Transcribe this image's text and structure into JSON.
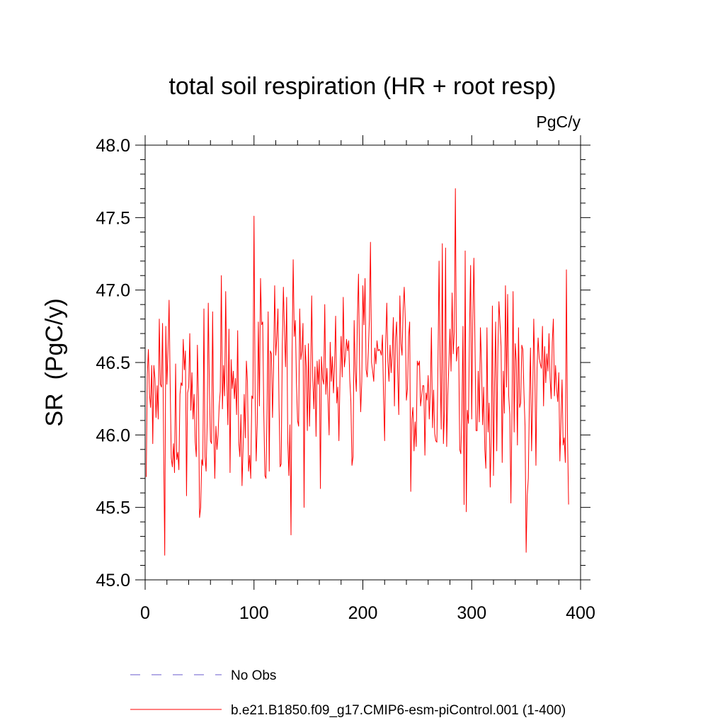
{
  "chart_data": {
    "type": "line",
    "title": "total soil respiration (HR + root resp)",
    "units": "PgC/y",
    "ylabel": "SR  (PgC/y)",
    "xlabel": "",
    "xlim": [
      0,
      400
    ],
    "ylim": [
      45.0,
      48.0
    ],
    "x_ticks": [
      0,
      100,
      200,
      300,
      400
    ],
    "x_tick_labels": [
      "0",
      "100",
      "200",
      "300",
      "400"
    ],
    "y_ticks": [
      45.0,
      45.5,
      46.0,
      46.5,
      47.0,
      47.5,
      48.0
    ],
    "y_tick_labels": [
      "45.0",
      "45.5",
      "46.0",
      "46.5",
      "47.0",
      "47.5",
      "48.0"
    ],
    "legend_position": "bottom",
    "legend": [
      {
        "label": "No Obs",
        "color": "#6a5acd",
        "style": "dashed"
      },
      {
        "label": "b.e21.B1850.f09_g17.CMIP6-esm-piControl.001 (1-400)",
        "color": "#ff0000",
        "style": "solid"
      }
    ],
    "series": [
      {
        "name": "b.e21.B1850.f09_g17.CMIP6-esm-piControl.001 (1-400)",
        "color": "#ff0000",
        "x_start": 1,
        "x_step": 1,
        "values": [
          45.71,
          46.42,
          46.59,
          46.28,
          46.19,
          46.48,
          45.94,
          46.48,
          46.39,
          46.12,
          46.34,
          46.11,
          46.8,
          46.35,
          46.33,
          46.77,
          45.91,
          45.17,
          46.75,
          46.35,
          46.59,
          46.93,
          46.35,
          45.84,
          45.78,
          45.94,
          45.74,
          46.49,
          45.83,
          45.88,
          45.76,
          46.28,
          46.36,
          46.34,
          46.66,
          46.45,
          46.58,
          45.58,
          46.29,
          46.33,
          46.7,
          46.17,
          46.43,
          46.11,
          46.28,
          45.95,
          45.85,
          46.62,
          46.26,
          45.43,
          45.5,
          45.83,
          45.79,
          46.87,
          45.85,
          45.75,
          46.09,
          46.91,
          46.34,
          45.96,
          45.94,
          46.85,
          46.06,
          45.7,
          46.06,
          45.9,
          46.0,
          46.2,
          46.3,
          47.1,
          46.18,
          46.48,
          46.27,
          46.99,
          46.38,
          46.07,
          46.73,
          45.74,
          46.52,
          46.32,
          46.44,
          46.25,
          46.39,
          46.14,
          46.72,
          45.95,
          45.85,
          46.14,
          45.65,
          45.92,
          46.28,
          45.98,
          46.51,
          46.37,
          45.75,
          45.86,
          45.7,
          46.27,
          46.25,
          47.51,
          46.29,
          45.82,
          46.08,
          46.78,
          46.2,
          47.08,
          46.76,
          46.78,
          46.15,
          45.72,
          45.7,
          46.18,
          46.85,
          45.75,
          46.58,
          46.56,
          46.12,
          46.48,
          47.03,
          46.55,
          46.68,
          46.87,
          46.2,
          45.78,
          45.8,
          46.62,
          47.02,
          46.72,
          46.47,
          46.95,
          45.96,
          45.72,
          46.07,
          45.31,
          46.57,
          47.21,
          46.68,
          46.79,
          46.36,
          46.1,
          46.06,
          46.87,
          46.52,
          46.58,
          46.77,
          45.5,
          46.62,
          46.47,
          46.03,
          46.63,
          46.06,
          46.38,
          46.96,
          46.39,
          46.18,
          46.47,
          45.99,
          46.51,
          46.35,
          46.52,
          45.63,
          46.54,
          46.39,
          46.35,
          46.9,
          46.28,
          46.46,
          46.24,
          46.0,
          46.64,
          46.37,
          46.54,
          46.29,
          46.48,
          46.82,
          46.22,
          46.33,
          45.96,
          46.4,
          46.68,
          46.4,
          46.95,
          46.47,
          46.54,
          46.66,
          46.58,
          46.65,
          46.38,
          46.23,
          45.79,
          45.85,
          46.79,
          46.44,
          46.3,
          46.81,
          47.11,
          46.47,
          46.16,
          46.37,
          47.03,
          46.76,
          47.08,
          46.45,
          46.4,
          46.57,
          46.8,
          47.33,
          46.5,
          46.44,
          46.37,
          46.6,
          46.49,
          46.65,
          46.58,
          46.59,
          46.58,
          46.55,
          46.69,
          46.27,
          45.96,
          46.63,
          46.91,
          46.51,
          46.37,
          46.62,
          46.43,
          46.56,
          46.81,
          46.2,
          46.67,
          46.78,
          46.43,
          46.14,
          46.96,
          46.63,
          46.55,
          46.86,
          47.02,
          46.79,
          46.24,
          46.32,
          46.68,
          46.78,
          45.61,
          46.11,
          46.19,
          45.89,
          46.09,
          45.92,
          46.51,
          46.48,
          46.51,
          46.2,
          46.27,
          46.34,
          46.34,
          45.86,
          46.29,
          46.24,
          46.41,
          46.11,
          46.3,
          46.74,
          46.05,
          46.31,
          46.01,
          45.96,
          45.95,
          46.48,
          47.2,
          46.46,
          46.04,
          47.32,
          45.94,
          46.18,
          47.29,
          45.92,
          46.27,
          46.48,
          46.73,
          46.44,
          46.98,
          46.56,
          46.71,
          47.7,
          46.51,
          46.6,
          46.61,
          45.9,
          45.87,
          46.14,
          46.75,
          45.52,
          47.27,
          45.47,
          46.17,
          46.08,
          46.74,
          47.17,
          46.11,
          46.79,
          47.22,
          46.63,
          46.03,
          46.03,
          46.44,
          46.09,
          46.74,
          46.49,
          46.07,
          46.33,
          45.9,
          45.77,
          46.74,
          46.02,
          46.22,
          45.64,
          46.0,
          46.89,
          45.72,
          46.36,
          46.78,
          45.89,
          46.57,
          46.92,
          46.77,
          46.61,
          45.81,
          46.44,
          46.15,
          47.03,
          46.33,
          46.97,
          46.27,
          46.14,
          45.53,
          46.18,
          46.99,
          46.02,
          46.63,
          46.51,
          45.93,
          46.74,
          46.19,
          46.22,
          46.62,
          46.59,
          46.29,
          46.06,
          45.19,
          45.58,
          45.7,
          46.24,
          46.6,
          45.89,
          46.23,
          46.8,
          46.42,
          45.79,
          46.46,
          46.67,
          46.53,
          46.49,
          46.46,
          46.75,
          46.2,
          46.61,
          46.36,
          46.56,
          46.44,
          46.7,
          46.39,
          46.25,
          46.64,
          46.8,
          46.27,
          46.48,
          46.32,
          46.23,
          46.43,
          45.82,
          46.1,
          46.38,
          45.93,
          45.98,
          45.81,
          47.14,
          46.01,
          45.52
        ]
      }
    ]
  }
}
